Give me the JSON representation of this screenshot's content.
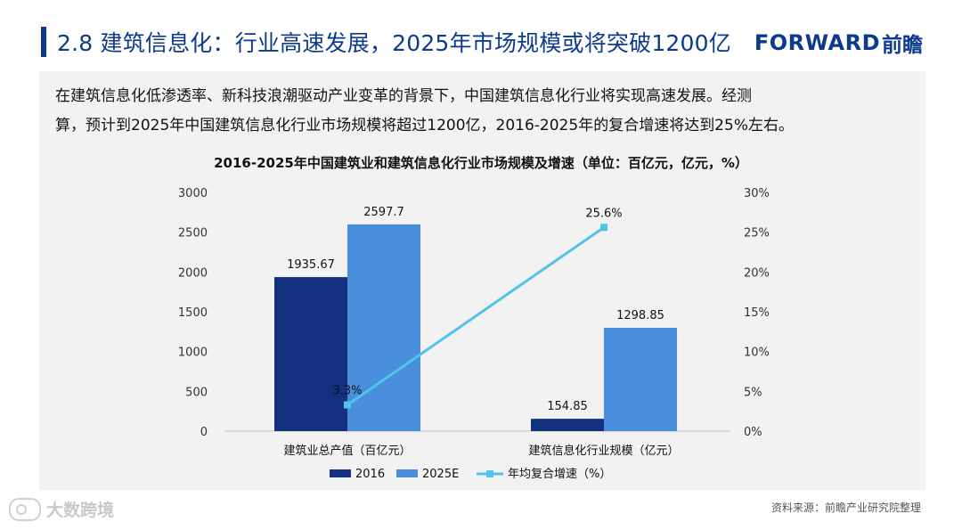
{
  "header": {
    "title": "2.8 建筑信息化：行业高速发展，2025年市场规模或将突破1200亿",
    "brand_word": "FORWARD",
    "brand_cn": "前瞻"
  },
  "intro": {
    "line1": "在建筑信息化低渗透率、新科技浪潮驱动产业变革的背景下，中国建筑信息化行业将实现高速发展。经测",
    "line2": "算，预计到2025年中国建筑信息化行业市场规模将超过1200亿，2016-2025年的复合增速将达到25%左右。"
  },
  "footer": {
    "source": "资料来源：前瞻产业研究院整理",
    "corner_logo": "大数跨境"
  },
  "colors": {
    "title_blue": "#0d3a8c",
    "bar_2016": "#13317f",
    "bar_2025": "#4a8fde",
    "line_growth": "#4fc3ea"
  },
  "chart_data": {
    "type": "bar",
    "title": "2016-2025年中国建筑业和建筑信息化行业市场规模及增速（单位：百亿元，亿元，%）",
    "categories": [
      "建筑业总产值（百亿元）",
      "建筑信息化行业规模（亿元）"
    ],
    "series": [
      {
        "name": "2016",
        "type": "bar",
        "axis": "left",
        "values": [
          1935.67,
          154.85
        ],
        "labels": [
          "1935.67",
          "154.85"
        ]
      },
      {
        "name": "2025E",
        "type": "bar",
        "axis": "left",
        "values": [
          2597.7,
          1298.85
        ],
        "labels": [
          "2597.7",
          "1298.85"
        ]
      },
      {
        "name": "年均复合增速（%）",
        "type": "line",
        "axis": "right",
        "values": [
          3.3,
          25.6
        ],
        "labels": [
          "3.3%",
          "25.6%"
        ]
      }
    ],
    "ylim": [
      0,
      3000
    ],
    "y_ticks": [
      "0",
      "500",
      "1000",
      "1500",
      "2000",
      "2500",
      "3000"
    ],
    "y2lim": [
      0,
      30
    ],
    "y2_ticks": [
      "0%",
      "5%",
      "10%",
      "15%",
      "20%",
      "25%",
      "30%"
    ],
    "grid": false,
    "legend_position": "bottom"
  }
}
